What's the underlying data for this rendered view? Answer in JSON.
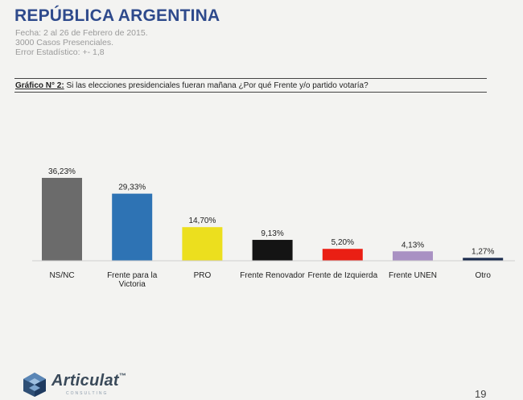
{
  "header": {
    "title": "REPÚBLICA ARGENTINA",
    "meta": [
      "Fecha: 2 al 26 de Febrero de 2015.",
      "3000 Casos Presenciales.",
      "Error Estadístico: +- 1,8"
    ]
  },
  "question": {
    "label": "Gráfico N° 2:",
    "text": "Si las elecciones presidenciales fueran mañana ¿Por qué Frente y/o partido votaría?"
  },
  "chart_data": {
    "type": "bar",
    "title": "Si las elecciones presidenciales fueran mañana ¿Por qué Frente y/o partido votaría?",
    "categories": [
      [
        "NS/NC"
      ],
      [
        "Frente para la",
        "Victoria"
      ],
      [
        "PRO"
      ],
      [
        "Frente Renovador"
      ],
      [
        "Frente de Izquierda"
      ],
      [
        "Frente UNEN"
      ],
      [
        "Otro"
      ]
    ],
    "values": [
      36.23,
      29.33,
      14.7,
      9.13,
      5.2,
      4.13,
      1.27
    ],
    "value_labels": [
      "36,23%",
      "29,33%",
      "14,70%",
      "9,13%",
      "5,20%",
      "4,13%",
      "1,27%"
    ],
    "colors": [
      "#6b6b6b",
      "#2e73b4",
      "#ecdf1e",
      "#141414",
      "#ea1f14",
      "#a991c3",
      "#1a2b4d"
    ],
    "ylim": [
      0,
      36.23
    ],
    "xlabel": "",
    "ylabel": "",
    "grid": false
  },
  "footer": {
    "brand": "Articulat",
    "trademark": "™",
    "tagline": "CONSULTING",
    "page_number": "19"
  }
}
